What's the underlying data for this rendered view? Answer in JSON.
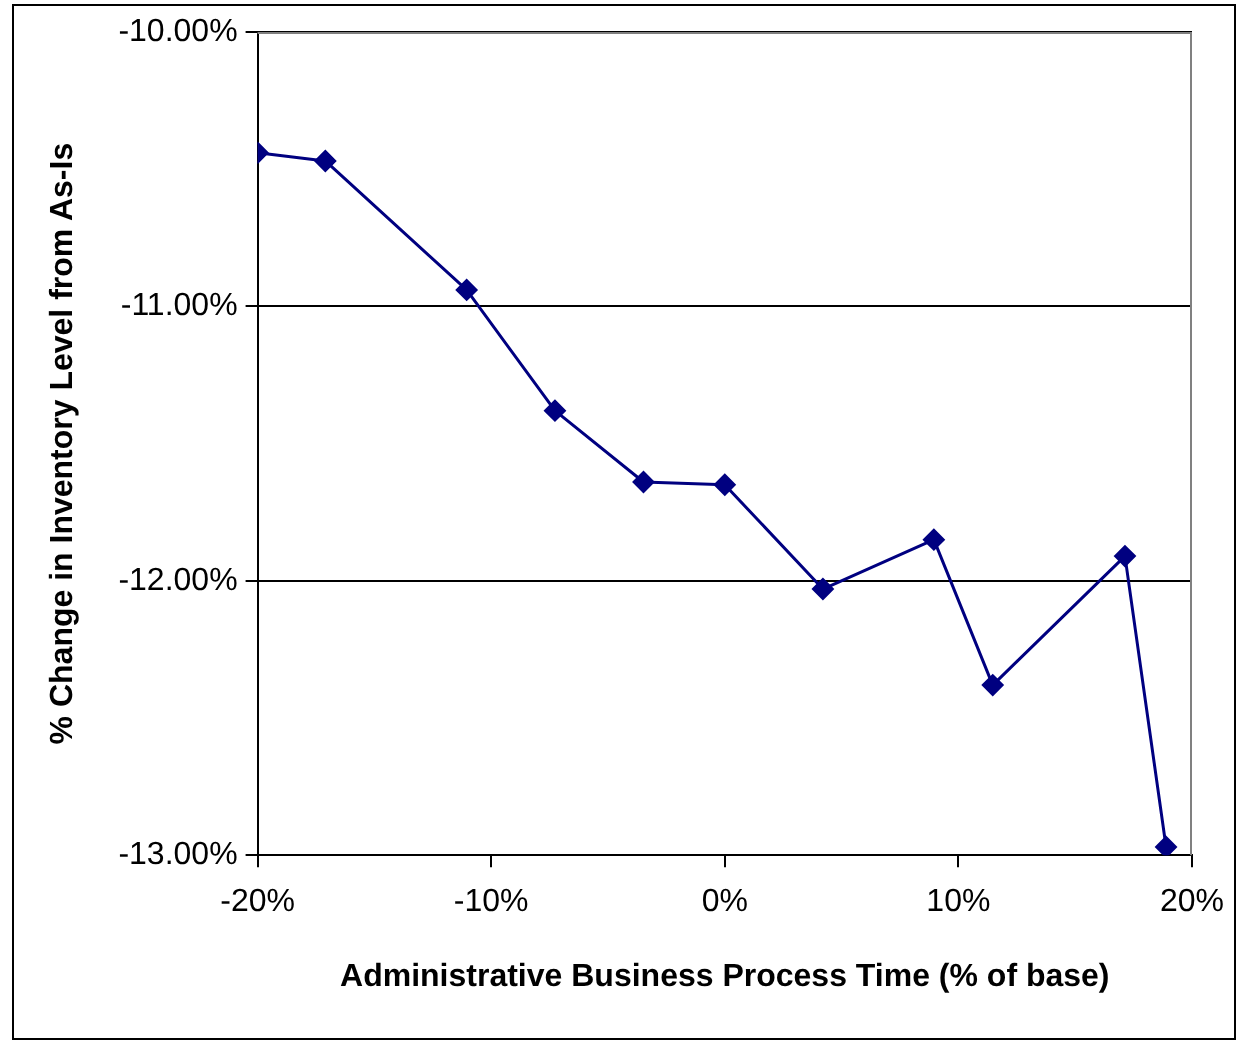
{
  "chart_data": {
    "type": "line",
    "xlabel": "Administrative Business Process Time (% of base)",
    "ylabel": "% Change in Inventory Level from As-Is",
    "series": [
      {
        "color": "#000080",
        "x": [
          -20,
          -17.1,
          -11.05,
          -7.27,
          -3.48,
          0,
          4.2,
          8.95,
          11.47,
          17.13,
          18.89
        ],
        "values": [
          -10.44,
          -10.47,
          -10.94,
          -11.38,
          -11.64,
          -11.65,
          -12.03,
          -11.85,
          -12.38,
          -11.91,
          -12.97
        ]
      }
    ],
    "xlim": [
      -20,
      20
    ],
    "xticks": [
      {
        "value": -20,
        "label": "-20%"
      },
      {
        "value": -10,
        "label": "-10%"
      },
      {
        "value": 0,
        "label": "0%"
      },
      {
        "value": 10,
        "label": "10%"
      },
      {
        "value": 20,
        "label": "20%"
      }
    ],
    "ylim": [
      -13,
      -10
    ],
    "yticks": [
      {
        "value": -13,
        "label": "-13.00%"
      },
      {
        "value": -12,
        "label": "-12.00%"
      },
      {
        "value": -11,
        "label": "-11.00%"
      },
      {
        "value": -10,
        "label": "-10.00%"
      }
    ],
    "grid": "y",
    "legend": false,
    "marker": "diamond",
    "line_style": "solid"
  }
}
